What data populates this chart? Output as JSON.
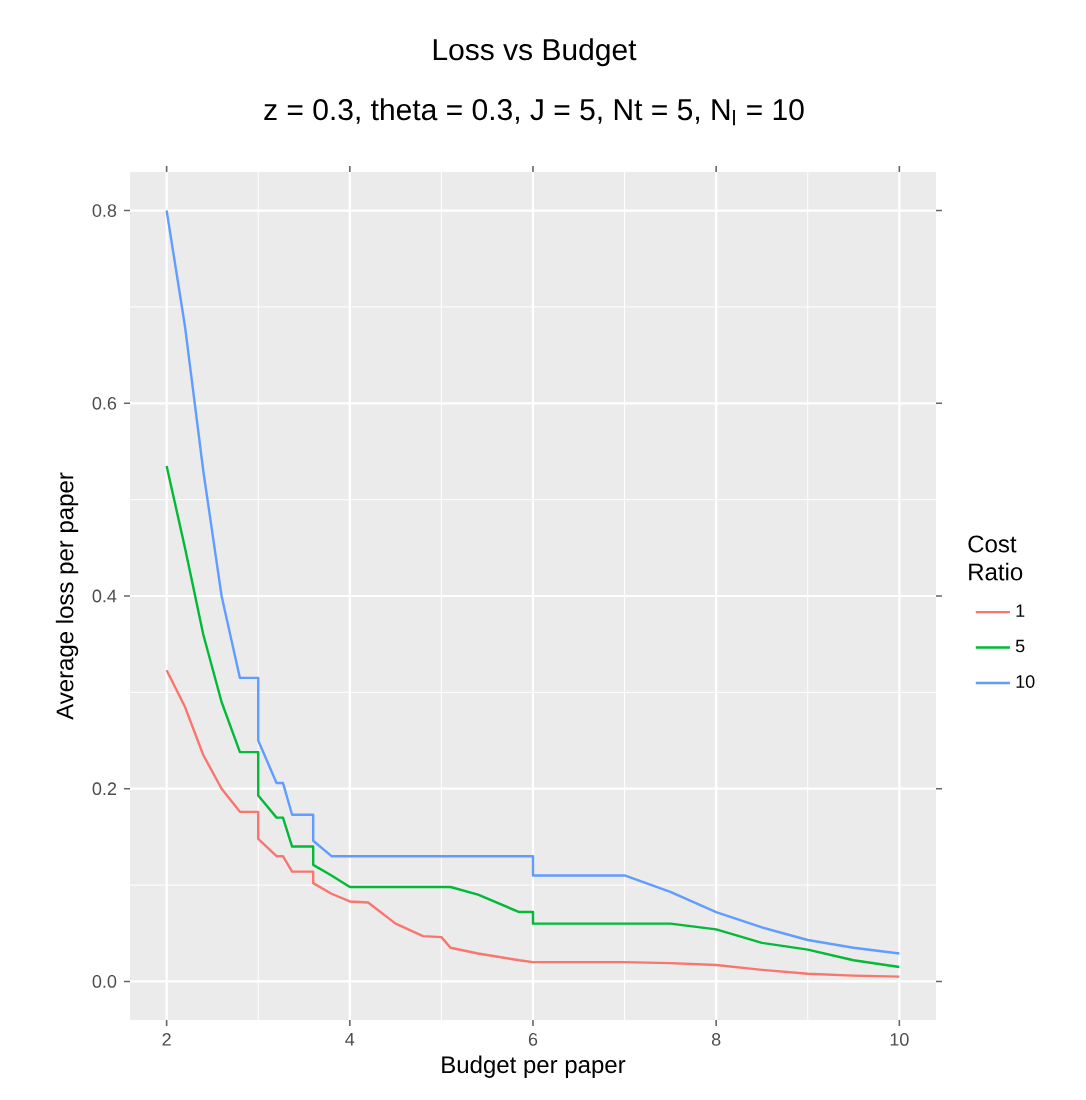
{
  "chart_data": {
    "type": "line",
    "title": "Loss vs Budget",
    "subtitle": "z = 0.3, theta = 0.3, J = 5, Nt = 5, N$_{l}$ = 10",
    "xlabel": "Budget per paper",
    "ylabel": "Average loss per paper",
    "legend_title": "Cost Ratio",
    "x": [
      2,
      2.2,
      2.4,
      2.6,
      2.8,
      3,
      3,
      3.2,
      3.27,
      3.37,
      3.6,
      3.6,
      3.8,
      4,
      4.2,
      4.5,
      4.8,
      5,
      5.1,
      5.4,
      5.85,
      6,
      6,
      7,
      7.5,
      8,
      8.5,
      9,
      9.5,
      10
    ],
    "series": [
      {
        "name": "1",
        "color": "#f8766d",
        "values": [
          0.323,
          0.285,
          0.235,
          0.2,
          0.176,
          0.176,
          0.148,
          0.13,
          0.13,
          0.114,
          0.114,
          0.102,
          0.091,
          0.083,
          0.082,
          0.06,
          0.047,
          0.046,
          0.035,
          0.029,
          0.022,
          0.02,
          0.02,
          0.02,
          0.019,
          0.017,
          0.012,
          0.008,
          0.006,
          0.005
        ]
      },
      {
        "name": "5",
        "color": "#00ba38",
        "values": [
          0.535,
          0.45,
          0.36,
          0.29,
          0.238,
          0.238,
          0.193,
          0.17,
          0.17,
          0.14,
          0.14,
          0.121,
          0.11,
          0.098,
          0.098,
          0.098,
          0.098,
          0.098,
          0.098,
          0.09,
          0.072,
          0.072,
          0.06,
          0.06,
          0.06,
          0.054,
          0.04,
          0.033,
          0.022,
          0.015
        ]
      },
      {
        "name": "10",
        "color": "#619cff",
        "values": [
          0.8,
          0.68,
          0.53,
          0.4,
          0.315,
          0.315,
          0.25,
          0.206,
          0.206,
          0.173,
          0.173,
          0.146,
          0.13,
          0.13,
          0.13,
          0.13,
          0.13,
          0.13,
          0.13,
          0.13,
          0.13,
          0.13,
          0.11,
          0.11,
          0.093,
          0.072,
          0.056,
          0.043,
          0.035,
          0.029
        ]
      }
    ],
    "xlim": [
      1.6,
      10.4
    ],
    "ylim": [
      -0.04,
      0.84
    ],
    "xticks": [
      2,
      4,
      6,
      8,
      10
    ],
    "yticks": [
      {
        "value": 0,
        "label": "0.0"
      },
      {
        "value": 0.2,
        "label": "0.2"
      },
      {
        "value": 0.4,
        "label": "0.4"
      },
      {
        "value": 0.6,
        "label": "0.6"
      },
      {
        "value": 0.8,
        "label": "0.8"
      }
    ],
    "grid": true,
    "legend": "right",
    "marker": "none",
    "line_style": "solid"
  }
}
